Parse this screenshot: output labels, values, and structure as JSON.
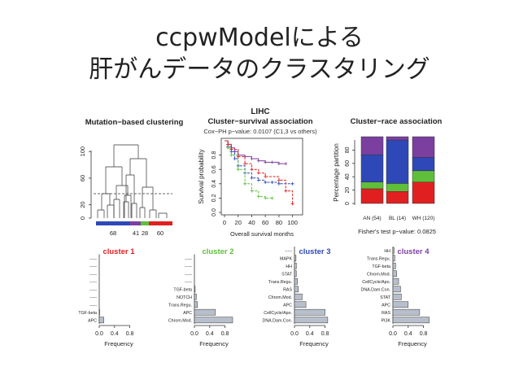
{
  "slide": {
    "title_line1": "ccpwModelによる",
    "title_line2": "肝がんデータのクラスタリング"
  },
  "colors": {
    "cluster1": "#e02020",
    "cluster2": "#5fbf3a",
    "cluster3": "#2f48b8",
    "cluster4": "#7b3fa0",
    "bar_fill": "#b8bfcc"
  },
  "chart_data": [
    {
      "type": "dendrogram",
      "title": "Mutation−based clustering",
      "yticks": [
        "0",
        "20",
        "60",
        "100"
      ],
      "cluster_sizes": [
        "68",
        "41",
        "28",
        "60"
      ]
    },
    {
      "type": "line",
      "title_small": "LIHC",
      "title": "Cluster−survival association",
      "subtitle": "Cox−PH p−value: 0.0107 (C1,3 vs others)",
      "xlabel": "Overall survival months",
      "ylabel": "Survival probability",
      "xticks": [
        "0",
        "20",
        "40",
        "60",
        "80",
        "100"
      ],
      "yticks": [
        "0.0",
        "0.2",
        "0.4",
        "0.6",
        "0.8"
      ],
      "xlim": [
        0,
        110
      ],
      "ylim": [
        0,
        1
      ],
      "series": [
        {
          "color": "#7b3fa0",
          "x": [
            0,
            5,
            10,
            15,
            20,
            30,
            40,
            50,
            60,
            70,
            80,
            90
          ],
          "y": [
            1.0,
            0.95,
            0.9,
            0.85,
            0.8,
            0.78,
            0.75,
            0.72,
            0.7,
            0.7,
            0.68,
            0.68
          ]
        },
        {
          "color": "#2f48b8",
          "x": [
            0,
            5,
            10,
            15,
            20,
            30,
            40,
            50,
            60,
            70,
            80,
            100
          ],
          "y": [
            1.0,
            0.92,
            0.85,
            0.75,
            0.65,
            0.55,
            0.48,
            0.45,
            0.42,
            0.42,
            0.4,
            0.4
          ]
        },
        {
          "color": "#5fbf3a",
          "x": [
            0,
            5,
            10,
            20,
            30,
            40,
            50,
            60,
            70
          ],
          "y": [
            1.0,
            0.9,
            0.8,
            0.6,
            0.4,
            0.3,
            0.22,
            0.2,
            0.2
          ]
        },
        {
          "color": "#e02020",
          "x": [
            0,
            5,
            10,
            20,
            30,
            40,
            50,
            60,
            80,
            90,
            100
          ],
          "y": [
            1.0,
            0.95,
            0.88,
            0.78,
            0.68,
            0.6,
            0.55,
            0.5,
            0.45,
            0.3,
            0.12
          ]
        }
      ]
    },
    {
      "type": "bar",
      "stacked": true,
      "title": "Cluster−race association",
      "ylabel": "Percentage partition",
      "yticks": [
        "0",
        "20",
        "40",
        "60",
        "80"
      ],
      "ylim": [
        0,
        100
      ],
      "categories": [
        "AN (54)",
        "BL (14)",
        "WH (120)"
      ],
      "series": [
        {
          "color": "#e02020",
          "values": [
            22,
            18,
            32
          ]
        },
        {
          "color": "#5fbf3a",
          "values": [
            10,
            12,
            17
          ]
        },
        {
          "color": "#2f48b8",
          "values": [
            41,
            65,
            20
          ]
        },
        {
          "color": "#7b3fa0",
          "values": [
            27,
            5,
            31
          ]
        }
      ],
      "footnote": "Fisher's test p−value: 0.0825"
    },
    {
      "type": "bar",
      "orientation": "horizontal",
      "title": "cluster 1",
      "title_color": "#e02020",
      "xlabel": "Frequency",
      "xticks": [
        "0.0",
        "0.4",
        "0.8"
      ],
      "xlim": [
        0,
        1
      ],
      "categories": [
        "-----",
        "-----",
        "-----",
        "-----",
        "-----",
        "-----",
        "-----",
        "TGF-beta",
        "APC"
      ],
      "values": [
        0,
        0,
        0,
        0,
        0,
        0,
        0,
        0.01,
        0.12
      ]
    },
    {
      "type": "bar",
      "orientation": "horizontal",
      "title": "cluster 2",
      "title_color": "#5fbf3a",
      "xlabel": "Frequency",
      "xticks": [
        "0.0",
        "0.4",
        "0.8"
      ],
      "xlim": [
        0,
        1
      ],
      "categories": [
        "-----",
        "-----",
        "-----",
        "-----",
        "TGF-beta",
        "NOTCH",
        "Trans.Regu.",
        "APC",
        "Chrom.Mod."
      ],
      "values": [
        0,
        0,
        0,
        0,
        0.02,
        0.05,
        0.08,
        0.55,
        1.0
      ]
    },
    {
      "type": "bar",
      "orientation": "horizontal",
      "title": "cluster 3",
      "title_color": "#2f48b8",
      "xlabel": "Frequency",
      "xticks": [
        "0.0",
        "0.4",
        "0.8"
      ],
      "xlim": [
        0,
        1
      ],
      "categories": [
        "-----",
        "MAPK",
        "HH",
        "STAT",
        "Trans.Regu.",
        "RAS",
        "Chrom.Mod.",
        "APC",
        "CellCycle/Apo.",
        "DNA.Dam.Con."
      ],
      "values": [
        0,
        0.04,
        0.05,
        0.05,
        0.08,
        0.1,
        0.2,
        0.3,
        0.8,
        0.87
      ]
    },
    {
      "type": "bar",
      "orientation": "horizontal",
      "title": "cluster 4",
      "title_color": "#7b3fa0",
      "xlabel": "Frequency",
      "xticks": [
        "0.0",
        "0.4",
        "0.8"
      ],
      "xlim": [
        0,
        1
      ],
      "categories": [
        "HH",
        "Trans.Regu.",
        "TGF-beta",
        "Chrom.Mod.",
        "CellCycle/Apo.",
        "DNA.Dam.Con.",
        "STAT",
        "APC",
        "RAS",
        "PI3K"
      ],
      "values": [
        0.03,
        0.05,
        0.07,
        0.1,
        0.15,
        0.2,
        0.22,
        0.4,
        0.7,
        0.95
      ]
    }
  ]
}
